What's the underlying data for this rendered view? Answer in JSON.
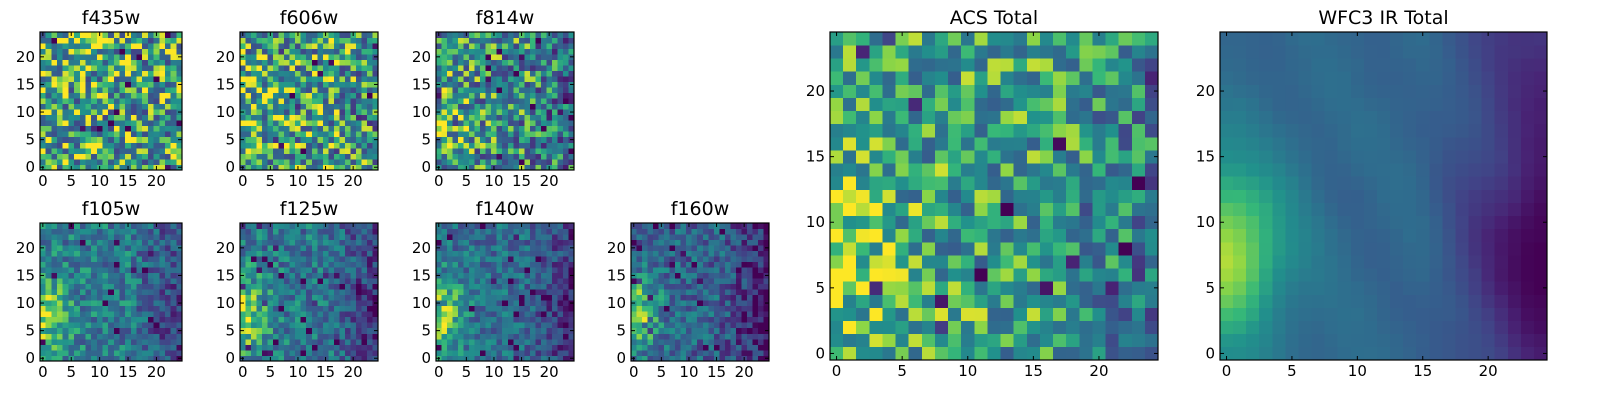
{
  "chart_data": [
    {
      "id": "f435w",
      "type": "heatmap",
      "title": "f435w",
      "grid": 25,
      "xticks": [
        0,
        5,
        10,
        15,
        20
      ],
      "yticks": [
        0,
        5,
        10,
        15,
        20
      ],
      "xlim": [
        0,
        24
      ],
      "ylim": [
        0,
        24
      ],
      "colormap": "viridis",
      "pattern": "noise",
      "noise_level": 0.42,
      "base_level": 0.68,
      "edge_strength": 0.05,
      "seed": 11,
      "grid_lines": false
    },
    {
      "id": "f606w",
      "type": "heatmap",
      "title": "f606w",
      "grid": 25,
      "xticks": [
        0,
        5,
        10,
        15,
        20
      ],
      "yticks": [
        0,
        5,
        10,
        15,
        20
      ],
      "xlim": [
        0,
        24
      ],
      "ylim": [
        0,
        24
      ],
      "colormap": "viridis",
      "pattern": "noise",
      "noise_level": 0.4,
      "base_level": 0.66,
      "edge_strength": 0.15,
      "seed": 23,
      "grid_lines": false
    },
    {
      "id": "f814w",
      "type": "heatmap",
      "title": "f814w",
      "grid": 25,
      "xticks": [
        0,
        5,
        10,
        15,
        20
      ],
      "yticks": [
        0,
        5,
        10,
        15,
        20
      ],
      "xlim": [
        0,
        24
      ],
      "ylim": [
        0,
        24
      ],
      "colormap": "viridis",
      "pattern": "noise",
      "noise_level": 0.38,
      "base_level": 0.58,
      "edge_strength": 0.25,
      "seed": 37,
      "grid_lines": false
    },
    {
      "id": "f105w",
      "type": "heatmap",
      "title": "f105w",
      "grid": 25,
      "xticks": [
        0,
        5,
        10,
        15,
        20
      ],
      "yticks": [
        0,
        5,
        10,
        15,
        20
      ],
      "xlim": [
        0,
        24
      ],
      "ylim": [
        0,
        24
      ],
      "colormap": "viridis",
      "pattern": "edge",
      "noise_level": 0.22,
      "base_level": 0.5,
      "edge_strength": 0.45,
      "seed": 41,
      "grid_lines": false
    },
    {
      "id": "f125w",
      "type": "heatmap",
      "title": "f125w",
      "grid": 25,
      "xticks": [
        0,
        5,
        10,
        15,
        20
      ],
      "yticks": [
        0,
        5,
        10,
        15,
        20
      ],
      "xlim": [
        0,
        24
      ],
      "ylim": [
        0,
        24
      ],
      "colormap": "viridis",
      "pattern": "edge",
      "noise_level": 0.22,
      "base_level": 0.48,
      "edge_strength": 0.48,
      "seed": 53,
      "grid_lines": false
    },
    {
      "id": "f140w",
      "type": "heatmap",
      "title": "f140w",
      "grid": 25,
      "xticks": [
        0,
        5,
        10,
        15,
        20
      ],
      "yticks": [
        0,
        5,
        10,
        15,
        20
      ],
      "xlim": [
        0,
        24
      ],
      "ylim": [
        0,
        24
      ],
      "colormap": "viridis",
      "pattern": "edge",
      "noise_level": 0.2,
      "base_level": 0.45,
      "edge_strength": 0.5,
      "seed": 67,
      "grid_lines": false
    },
    {
      "id": "f160w",
      "type": "heatmap",
      "title": "f160w",
      "grid": 25,
      "xticks": [
        0,
        5,
        10,
        15,
        20
      ],
      "yticks": [
        0,
        5,
        10,
        15,
        20
      ],
      "xlim": [
        0,
        24
      ],
      "ylim": [
        0,
        24
      ],
      "colormap": "viridis",
      "pattern": "edge",
      "noise_level": 0.22,
      "base_level": 0.4,
      "edge_strength": 0.55,
      "seed": 79,
      "grid_lines": false
    },
    {
      "id": "acs-total",
      "type": "heatmap",
      "title": "ACS Total",
      "grid": 25,
      "xticks": [
        0,
        5,
        10,
        15,
        20
      ],
      "yticks": [
        0,
        5,
        10,
        15,
        20
      ],
      "xlim": [
        0,
        24
      ],
      "ylim": [
        0,
        24
      ],
      "colormap": "viridis",
      "pattern": "noise",
      "noise_level": 0.3,
      "base_level": 0.66,
      "edge_strength": 0.28,
      "seed": 97,
      "grid_lines": false
    },
    {
      "id": "wfc3-ir-total",
      "type": "heatmap",
      "title": "WFC3 IR Total",
      "grid": 25,
      "xticks": [
        0,
        5,
        10,
        15,
        20
      ],
      "yticks": [
        0,
        5,
        10,
        15,
        20
      ],
      "xlim": [
        0,
        24
      ],
      "ylim": [
        0,
        24
      ],
      "colormap": "viridis",
      "pattern": "smooth",
      "noise_level": 0.06,
      "base_level": 0.42,
      "edge_strength": 0.62,
      "seed": 113,
      "grid_lines": false
    }
  ]
}
